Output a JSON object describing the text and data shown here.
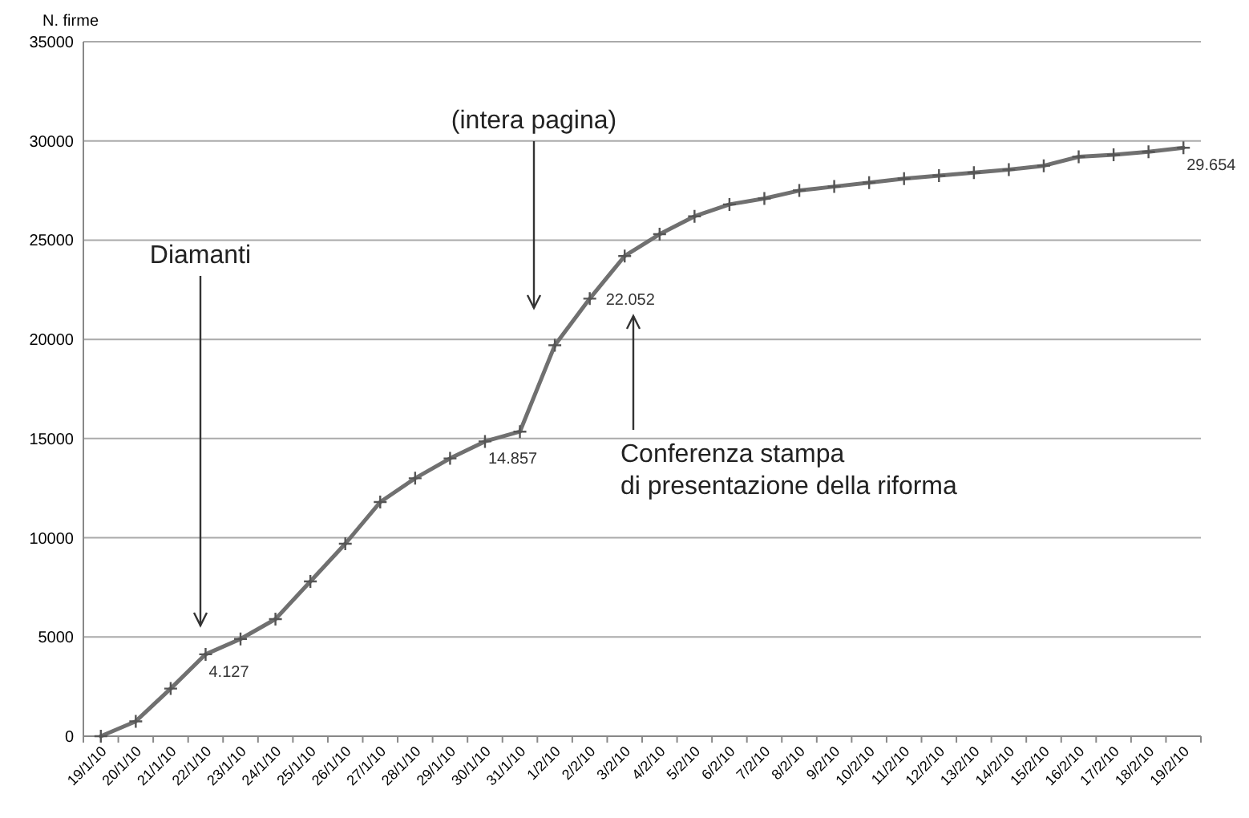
{
  "chart_data": {
    "type": "line",
    "ylabel": "N. firme",
    "categories": [
      "19/1/10",
      "20/1/10",
      "21/1/10",
      "22/1/10",
      "23/1/10",
      "24/1/10",
      "25/1/10",
      "26/1/10",
      "27/1/10",
      "28/1/10",
      "29/1/10",
      "30/1/10",
      "31/1/10",
      "1/2/10",
      "2/2/10",
      "3/2/10",
      "4/2/10",
      "5/2/10",
      "6/2/10",
      "7/2/10",
      "8/2/10",
      "9/2/10",
      "10/2/10",
      "11/2/10",
      "12/2/10",
      "13/2/10",
      "14/2/10",
      "15/2/10",
      "16/2/10",
      "17/2/10",
      "18/2/10",
      "19/2/10"
    ],
    "series": [
      {
        "color": "#707070",
        "values": [
          0,
          750,
          2400,
          4127,
          4900,
          5900,
          7800,
          9700,
          11800,
          13000,
          14000,
          14857,
          15350,
          19700,
          22052,
          24200,
          25300,
          26200,
          26800,
          27100,
          27500,
          27700,
          27900,
          28100,
          28250,
          28400,
          28550,
          28750,
          29200,
          29300,
          29450,
          29654
        ],
        "value_labels": [
          null,
          null,
          null,
          "4.127",
          null,
          null,
          null,
          null,
          null,
          null,
          null,
          "14.857",
          null,
          null,
          "22.052",
          null,
          null,
          null,
          null,
          null,
          null,
          null,
          null,
          null,
          null,
          null,
          null,
          null,
          null,
          null,
          null,
          "29.654"
        ]
      }
    ],
    "ylim": [
      0,
      35000
    ],
    "yticks": [
      0,
      5000,
      10000,
      15000,
      20000,
      25000,
      30000,
      35000
    ],
    "grid": "y",
    "marker": "cross",
    "line_style": "solid",
    "annotations": [
      "Diamanti",
      "(intera pagina)",
      "Conferenza stampa\ndi presentazione della riforma"
    ]
  }
}
